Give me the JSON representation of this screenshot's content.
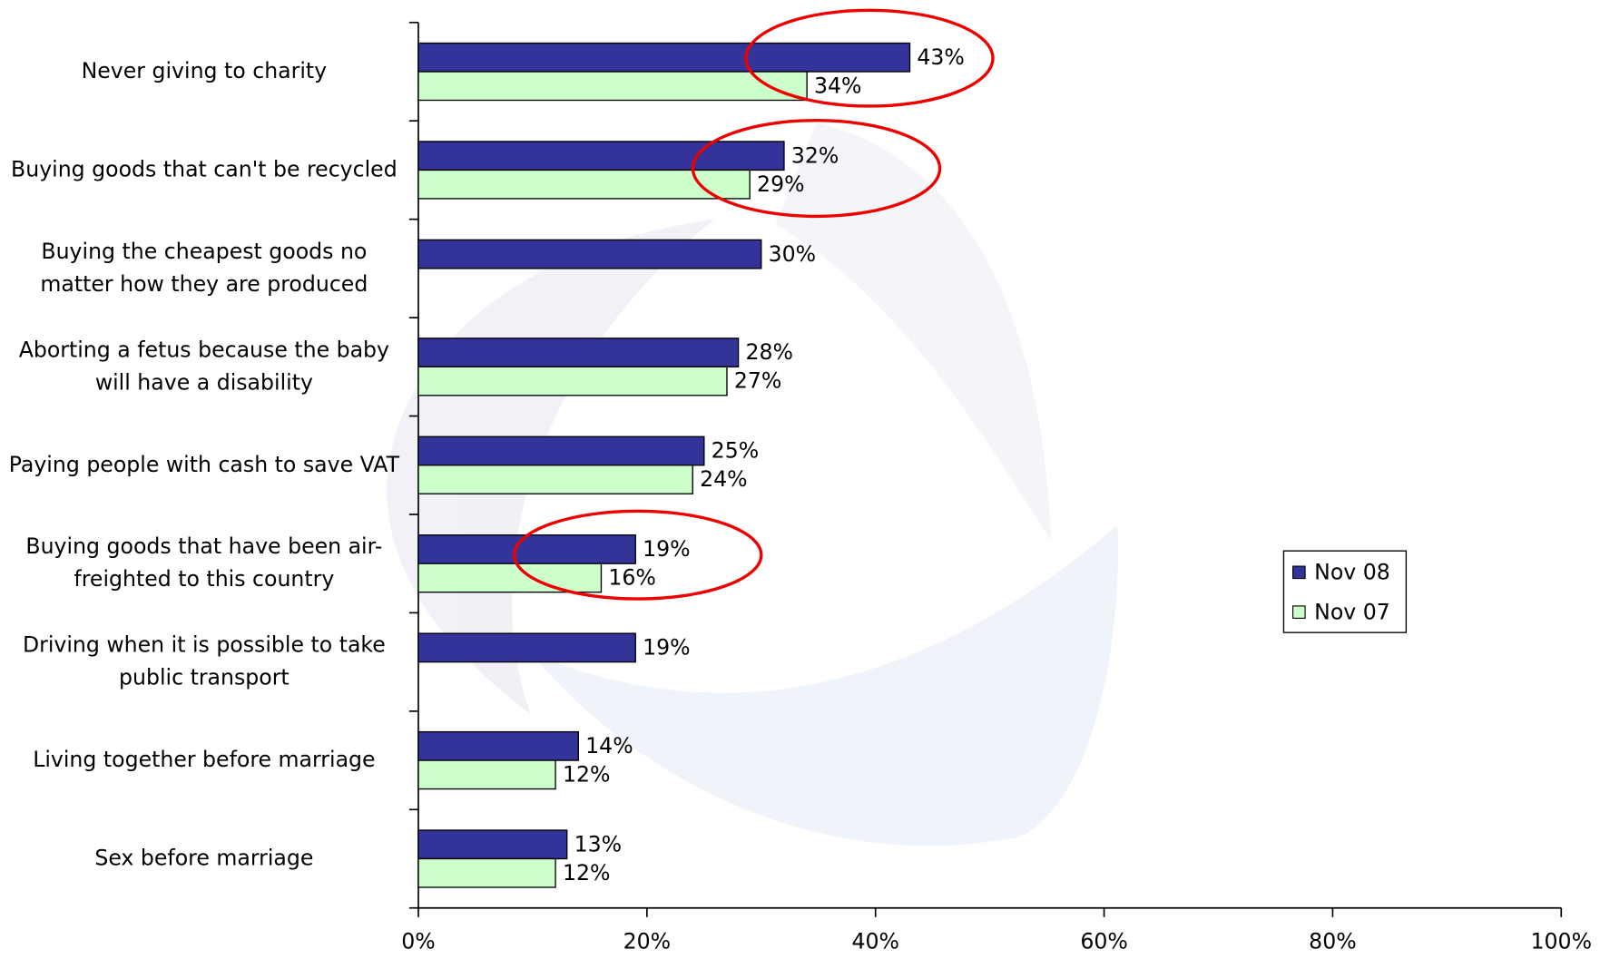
{
  "chart_data": {
    "type": "bar",
    "orientation": "horizontal",
    "categories": [
      "Never giving to charity",
      "Buying goods that can't be recycled",
      "Buying the cheapest goods no matter how they are produced",
      "Aborting a fetus because the baby will have a disability",
      "Paying people with cash to save VAT",
      "Buying goods that have been air-freighted to this country",
      "Driving when it is possible to take public transport",
      "Living together before marriage",
      "Sex before marriage"
    ],
    "series": [
      {
        "name": "Nov 08",
        "color": "#333399",
        "values": [
          43,
          32,
          30,
          28,
          25,
          19,
          19,
          14,
          13
        ],
        "value_labels": [
          "43%",
          "32%",
          "30%",
          "28%",
          "25%",
          "19%",
          "19%",
          "14%",
          "13%"
        ]
      },
      {
        "name": "Nov 07",
        "color": "#ccffcc",
        "values": [
          34,
          29,
          null,
          27,
          24,
          16,
          null,
          12,
          12
        ],
        "value_labels": [
          "34%",
          "29%",
          null,
          "27%",
          "24%",
          "16%",
          null,
          "12%",
          "12%"
        ]
      }
    ],
    "xlim": [
      0,
      100
    ],
    "xticks": [
      {
        "value": 0,
        "label": "0%"
      },
      {
        "value": 20,
        "label": "20%"
      },
      {
        "value": 40,
        "label": "40%"
      },
      {
        "value": 60,
        "label": "60%"
      },
      {
        "value": 80,
        "label": "80%"
      },
      {
        "value": 100,
        "label": "100%"
      }
    ],
    "legend": "right"
  }
}
